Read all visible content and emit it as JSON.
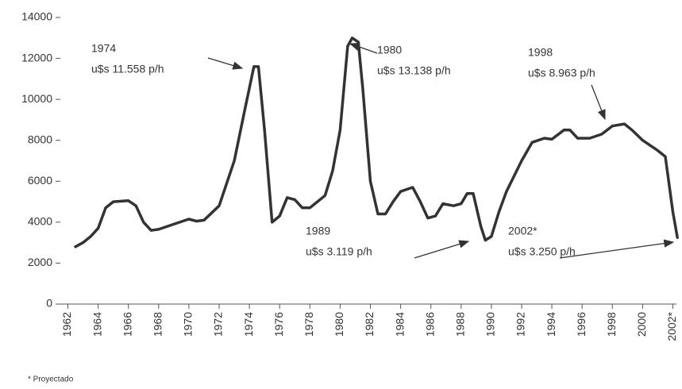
{
  "chart_data": {
    "type": "line",
    "x": [
      1962.5,
      1963,
      1963.5,
      1964,
      1964.5,
      1965,
      1966,
      1966.5,
      1967,
      1967.5,
      1968,
      1969,
      1970,
      1970.5,
      1971,
      1972,
      1973,
      1973.7,
      1974.3,
      1974.6,
      1975,
      1975.5,
      1976,
      1976.5,
      1977,
      1977.5,
      1978,
      1979,
      1979.5,
      1980,
      1980.5,
      1980.8,
      1981.2,
      1981.5,
      1982,
      1982.5,
      1983,
      1983.5,
      1984,
      1984.8,
      1985.3,
      1985.8,
      1986.3,
      1986.8,
      1987.5,
      1988,
      1988.4,
      1988.8,
      1989.3,
      1989.6,
      1990,
      1990.5,
      1991,
      1992,
      1992.7,
      1993.5,
      1994,
      1994.8,
      1995.2,
      1995.7,
      1996.5,
      1997.3,
      1998,
      1998.8,
      1999.3,
      2000,
      2001,
      2001.5,
      2002,
      2002.3
    ],
    "values": [
      2800,
      3000,
      3300,
      3700,
      4700,
      5000,
      5050,
      4800,
      4000,
      3600,
      3650,
      3900,
      4150,
      4050,
      4100,
      4800,
      7000,
      9500,
      11600,
      11600,
      8500,
      4000,
      4300,
      5200,
      5100,
      4700,
      4700,
      5300,
      6500,
      8500,
      12600,
      13000,
      12800,
      10500,
      6000,
      4400,
      4400,
      5000,
      5500,
      5700,
      5000,
      4200,
      4300,
      4900,
      4800,
      4900,
      5400,
      5400,
      3800,
      3119,
      3300,
      4500,
      5500,
      7000,
      7900,
      8100,
      8050,
      8500,
      8500,
      8100,
      8100,
      8300,
      8700,
      8800,
      8500,
      8000,
      7500,
      7200,
      4500,
      3250
    ],
    "color": "#333333",
    "xlim": [
      1961.5,
      2002.5
    ],
    "xticks": [
      1962,
      1964,
      1966,
      1968,
      1970,
      1972,
      1974,
      1976,
      1978,
      1980,
      1982,
      1984,
      1986,
      1988,
      1990,
      1992,
      1994,
      1996,
      1998,
      2000,
      {
        "value": 2002,
        "label": "2002*"
      }
    ],
    "ylim": [
      0,
      14000
    ],
    "yticks": [
      0,
      2000,
      4000,
      6000,
      8000,
      10000,
      12000,
      14000
    ],
    "annotations": [
      {
        "year": "1974",
        "text": "u$s 11.558 p/h"
      },
      {
        "year": "1980",
        "text": "u$s 13.138 p/h"
      },
      {
        "year": "1998",
        "text": "u$s 8.963 p/h"
      },
      {
        "year": "1989",
        "text": "u$s 3.119 p/h"
      },
      {
        "year": "2002*",
        "text": "u$s 3.250 p/h"
      }
    ],
    "footnote": "* Proyectado"
  }
}
